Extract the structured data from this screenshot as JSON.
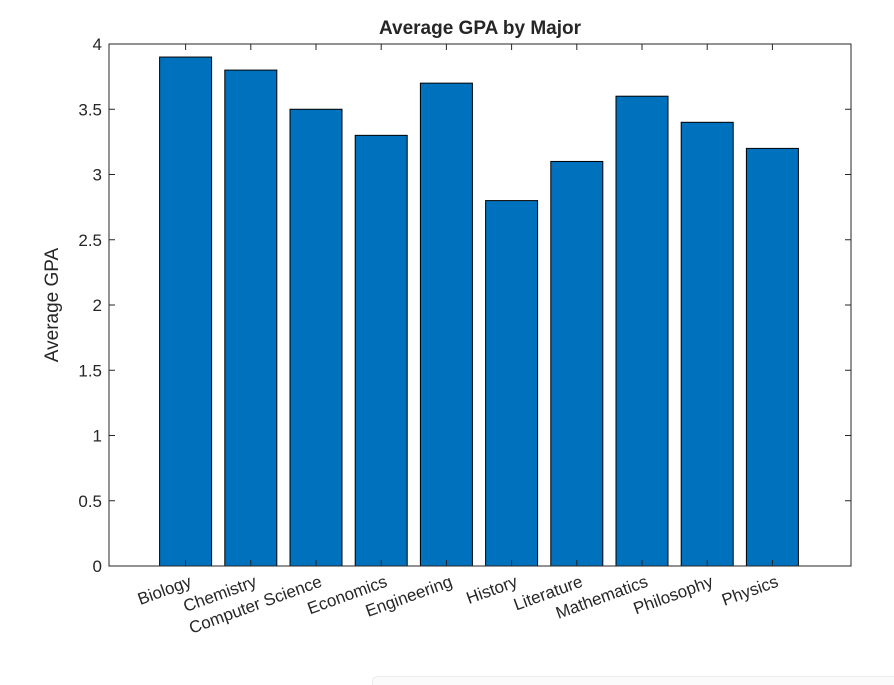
{
  "chart_data": {
    "type": "bar",
    "title": "Average GPA by Major",
    "xlabel": "",
    "ylabel": "Average GPA",
    "categories": [
      "Biology",
      "Chemistry",
      "Computer Science",
      "Economics",
      "Engineering",
      "History",
      "Literature",
      "Mathematics",
      "Philosophy",
      "Physics"
    ],
    "values": [
      3.9,
      3.8,
      3.5,
      3.3,
      3.7,
      2.8,
      3.1,
      3.6,
      3.4,
      3.2
    ],
    "ylim": [
      0,
      4
    ],
    "yticks": [
      "0",
      "0.5",
      "1",
      "1.5",
      "2",
      "2.5",
      "3",
      "3.5",
      "4"
    ],
    "grid": false,
    "legend": "none",
    "colors": {
      "bar": "#0072bd",
      "bar_edge": "#000000",
      "axis": "#262626"
    }
  }
}
